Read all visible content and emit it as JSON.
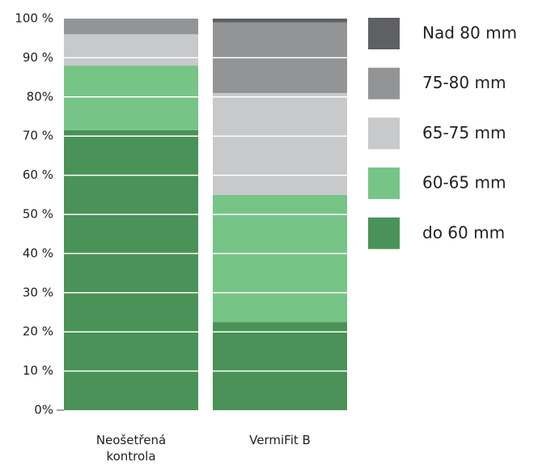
{
  "chart_data": {
    "type": "stacked_bar",
    "categories": [
      "Neošetřená kontrola",
      "VermiFit B"
    ],
    "series": [
      {
        "name": "do 60 mm",
        "color": "#4a9258",
        "values": [
          71.5,
          22.5
        ]
      },
      {
        "name": "60-65 mm",
        "color": "#77c487",
        "values": [
          16.5,
          32.5
        ]
      },
      {
        "name": "65-75 mm",
        "color": "#c8c9cb",
        "values": [
          8,
          26
        ]
      },
      {
        "name": "75-80 mm",
        "color": "#939496",
        "values": [
          4,
          18
        ]
      },
      {
        "name": "Nad 80 mm",
        "color": "#5f6062",
        "values": [
          0,
          1
        ]
      }
    ],
    "ylim": [
      0,
      100
    ],
    "yticks": [
      {
        "value": 0,
        "label": "0%"
      },
      {
        "value": 10,
        "label": "10 %"
      },
      {
        "value": 20,
        "label": "20 %"
      },
      {
        "value": 30,
        "label": "30 %"
      },
      {
        "value": 40,
        "label": "40 %"
      },
      {
        "value": 50,
        "label": "50 %"
      },
      {
        "value": 60,
        "label": "60 %"
      },
      {
        "value": 70,
        "label": "70 %"
      },
      {
        "value": 80,
        "label": "80%"
      },
      {
        "value": 90,
        "label": "90 %"
      },
      {
        "value": 100,
        "label": "100 %"
      }
    ],
    "grid": true,
    "legend": "right"
  }
}
